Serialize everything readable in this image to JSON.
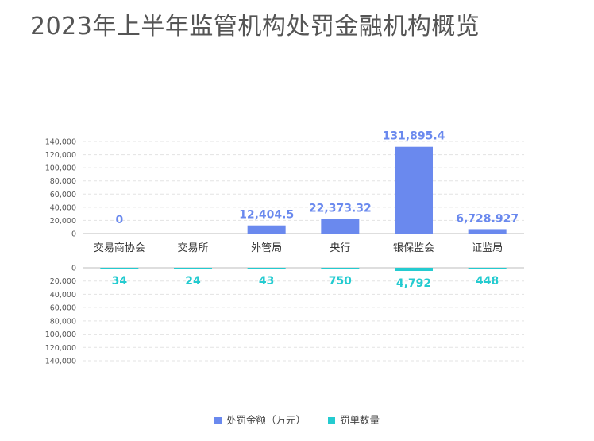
{
  "chart_data": {
    "type": "bar",
    "title": "2023年上半年监管机构处罚金融机构概览",
    "categories": [
      "交易商协会",
      "交易所",
      "外管局",
      "央行",
      "银保监会",
      "证监局"
    ],
    "series": [
      {
        "name": "处罚金额（万元）",
        "color": "#6a89ee",
        "values": [
          0,
          null,
          12404.5,
          22373.32,
          131895.4,
          6728.927
        ],
        "labels": [
          "0",
          "",
          "12,404.5",
          "22,373.32",
          "131,895.4",
          "6,728.927"
        ],
        "axis": "top"
      },
      {
        "name": "罚单数量",
        "color": "#24cbd0",
        "values": [
          34,
          24,
          43,
          750,
          4792,
          448
        ],
        "labels": [
          "34",
          "24",
          "43",
          "750",
          "4,792",
          "448"
        ],
        "axis": "bottom"
      }
    ],
    "top_axis": {
      "ylim": [
        0,
        140000
      ],
      "ticks": [
        "0",
        "20,000",
        "40,000",
        "60,000",
        "80,000",
        "100,000",
        "120,000",
        "140,000"
      ]
    },
    "bottom_axis": {
      "ylim": [
        0,
        140000
      ],
      "inverted": true,
      "ticks": [
        "0",
        "20,000",
        "40,000",
        "60,000",
        "80,000",
        "100,000",
        "120,000",
        "140,000"
      ]
    },
    "grid": true,
    "legend": "bottom-center"
  }
}
